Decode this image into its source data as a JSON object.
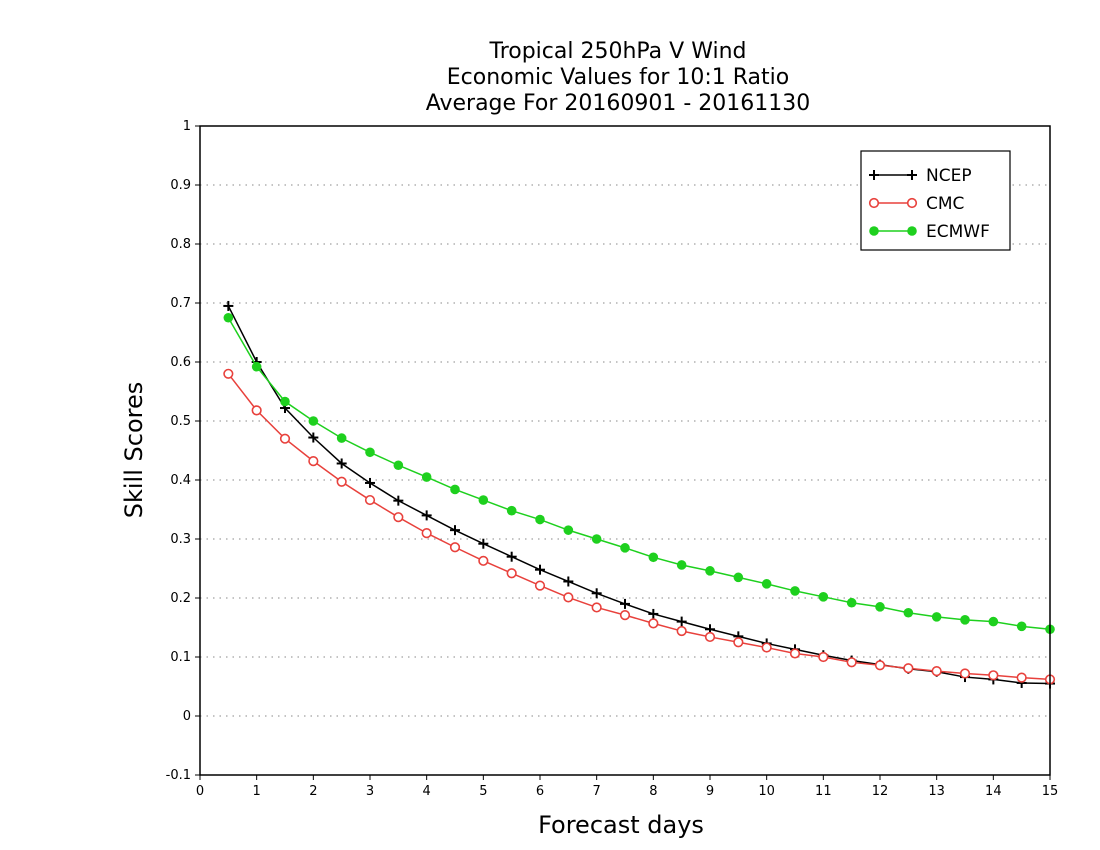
{
  "chart_data": {
    "type": "line",
    "title": [
      "Tropical 250hPa V Wind",
      "Economic Values for 10:1 Ratio",
      "Average For 20160901 - 20161130"
    ],
    "xlabel": "Forecast days",
    "ylabel": "Skill Scores",
    "xlim": [
      0,
      15
    ],
    "ylim": [
      -0.1,
      1
    ],
    "xticks": [
      0,
      1,
      2,
      3,
      4,
      5,
      6,
      7,
      8,
      9,
      10,
      11,
      12,
      13,
      14,
      15
    ],
    "yticks": [
      -0.1,
      0,
      0.1,
      0.2,
      0.3,
      0.4,
      0.5,
      0.6,
      0.7,
      0.8,
      0.9,
      1
    ],
    "ytick_labels": [
      "-0.1",
      "0",
      "0.1",
      "0.2",
      "0.3",
      "0.4",
      "0.5",
      "0.6",
      "0.7",
      "0.8",
      "0.9",
      "1"
    ],
    "grid": "horizontal-dotted",
    "legend_position": "top-right",
    "x": [
      0.5,
      1.0,
      1.5,
      2.0,
      2.5,
      3.0,
      3.5,
      4.0,
      4.5,
      5.0,
      5.5,
      6.0,
      6.5,
      7.0,
      7.5,
      8.0,
      8.5,
      9.0,
      9.5,
      10.0,
      10.5,
      11.0,
      11.5,
      12.0,
      12.5,
      13.0,
      13.5,
      14.0,
      14.5,
      15.0
    ],
    "series": [
      {
        "name": "NCEP",
        "color": "#000000",
        "marker": "plus",
        "values": [
          0.695,
          0.6,
          0.522,
          0.472,
          0.428,
          0.395,
          0.365,
          0.34,
          0.315,
          0.292,
          0.27,
          0.248,
          0.228,
          0.208,
          0.19,
          0.173,
          0.16,
          0.147,
          0.135,
          0.123,
          0.113,
          0.103,
          0.094,
          0.087,
          0.08,
          0.075,
          0.066,
          0.062,
          0.056,
          0.055
        ]
      },
      {
        "name": "CMC",
        "color": "#e8413c",
        "marker": "open-circle",
        "values": [
          0.58,
          0.518,
          0.47,
          0.432,
          0.397,
          0.366,
          0.337,
          0.31,
          0.286,
          0.263,
          0.242,
          0.221,
          0.201,
          0.184,
          0.171,
          0.157,
          0.144,
          0.134,
          0.125,
          0.116,
          0.106,
          0.1,
          0.091,
          0.086,
          0.081,
          0.076,
          0.072,
          0.069,
          0.065,
          0.062
        ]
      },
      {
        "name": "ECMWF",
        "color": "#1ed01e",
        "marker": "filled-circle",
        "values": [
          0.675,
          0.592,
          0.533,
          0.5,
          0.471,
          0.447,
          0.425,
          0.405,
          0.384,
          0.366,
          0.348,
          0.333,
          0.315,
          0.3,
          0.285,
          0.269,
          0.256,
          0.246,
          0.235,
          0.224,
          0.212,
          0.202,
          0.192,
          0.185,
          0.175,
          0.168,
          0.163,
          0.16,
          0.152,
          0.147
        ]
      }
    ]
  }
}
